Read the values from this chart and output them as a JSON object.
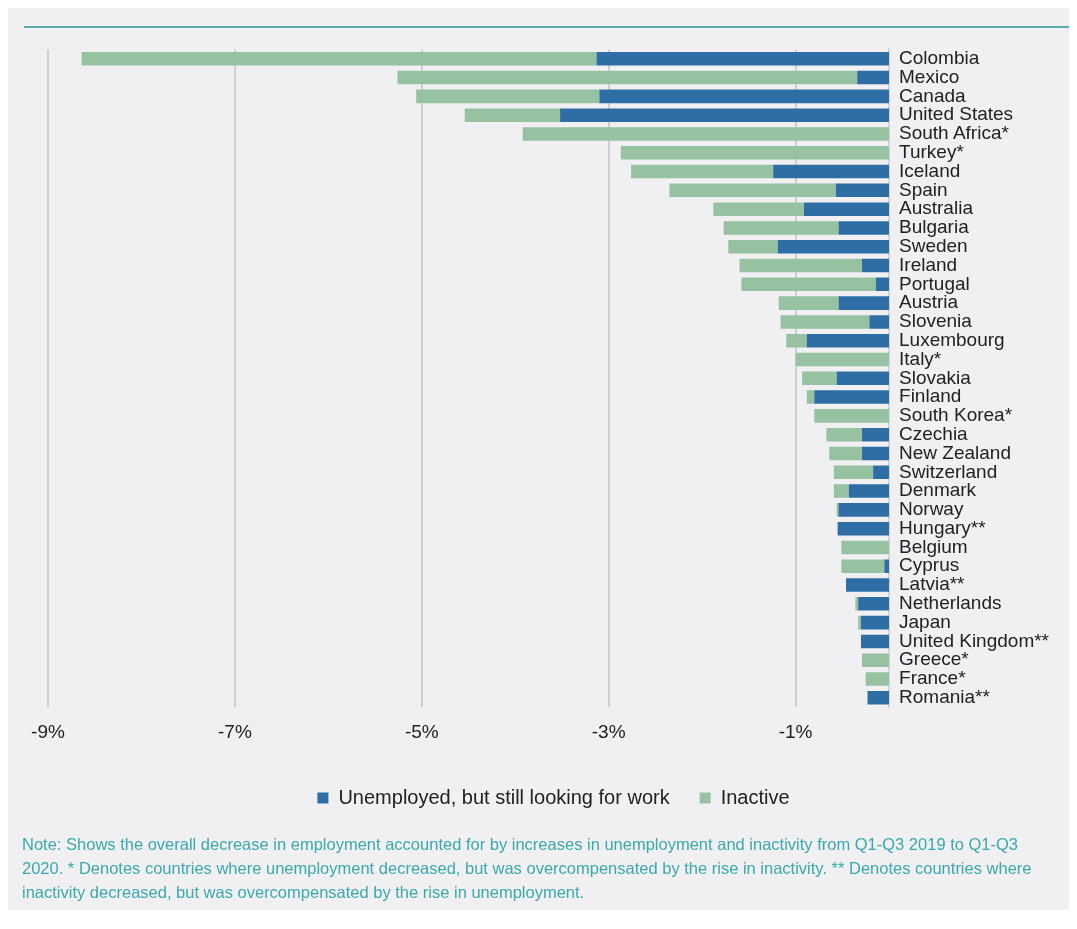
{
  "chart_data": {
    "type": "bar",
    "orientation": "horizontal",
    "stacked": true,
    "categories": [
      "Colombia",
      "Mexico",
      "Canada",
      "United States",
      "South Africa*",
      "Turkey*",
      "Iceland",
      "Spain",
      "Australia",
      "Bulgaria",
      "Sweden",
      "Ireland",
      "Portugal",
      "Austria",
      "Slovenia",
      "Luxembourg",
      "Italy*",
      "Slovakia",
      "Finland",
      "South Korea*",
      "Czechia",
      "New Zealand",
      "Switzerland",
      "Denmark",
      "Norway",
      "Hungary**",
      "Belgium",
      "Cyprus",
      "Latvia**",
      "Netherlands",
      "Japan",
      "United Kingdom**",
      "Greece*",
      "France*",
      "Romania**"
    ],
    "series": [
      {
        "name": "Unemployed, but still looking for work",
        "color": "#2f6ea5",
        "values": [
          -3.13,
          -0.34,
          -3.1,
          -3.52,
          0,
          0,
          -1.24,
          -0.57,
          -0.91,
          -0.54,
          -1.19,
          -0.29,
          -0.14,
          -0.54,
          -0.21,
          -0.88,
          0,
          -0.56,
          -0.8,
          0,
          -0.29,
          -0.29,
          -0.17,
          -0.43,
          -0.54,
          -0.55,
          0,
          -0.05,
          -0.46,
          -0.33,
          -0.3,
          -0.3,
          0,
          0,
          -0.23
        ]
      },
      {
        "name": "Inactive",
        "color": "#96c2a2",
        "values": [
          -5.51,
          -4.92,
          -1.96,
          -1.02,
          -3.92,
          -2.87,
          -1.52,
          -1.78,
          -0.97,
          -1.23,
          -0.53,
          -1.31,
          -1.44,
          -0.64,
          -0.95,
          -0.22,
          -1.0,
          -0.37,
          -0.08,
          -0.8,
          -0.38,
          -0.35,
          -0.42,
          -0.16,
          -0.02,
          0,
          -0.51,
          -0.46,
          0,
          -0.03,
          -0.03,
          0,
          -0.29,
          -0.25,
          0
        ]
      }
    ],
    "xlim": [
      -9,
      0
    ],
    "xticks": [
      {
        "value": -9,
        "label": "-9%"
      },
      {
        "value": -7,
        "label": "-7%"
      },
      {
        "value": -5,
        "label": "-5%"
      },
      {
        "value": -3,
        "label": "-3%"
      },
      {
        "value": -1,
        "label": "-1%"
      }
    ],
    "grid": "x",
    "legend": "bottom",
    "annotations": [
      "Note: Shows the overall decrease in employment accounted for by increases in unemployment and inactivity from Q1-Q3 2019 to Q1-Q3 2020. * Denotes countries where unemployment decreased, but was overcompensated by the rise in inactivity. ** Denotes countries where inactivity decreased, but was overcompensated by the rise in unemployment."
    ]
  }
}
